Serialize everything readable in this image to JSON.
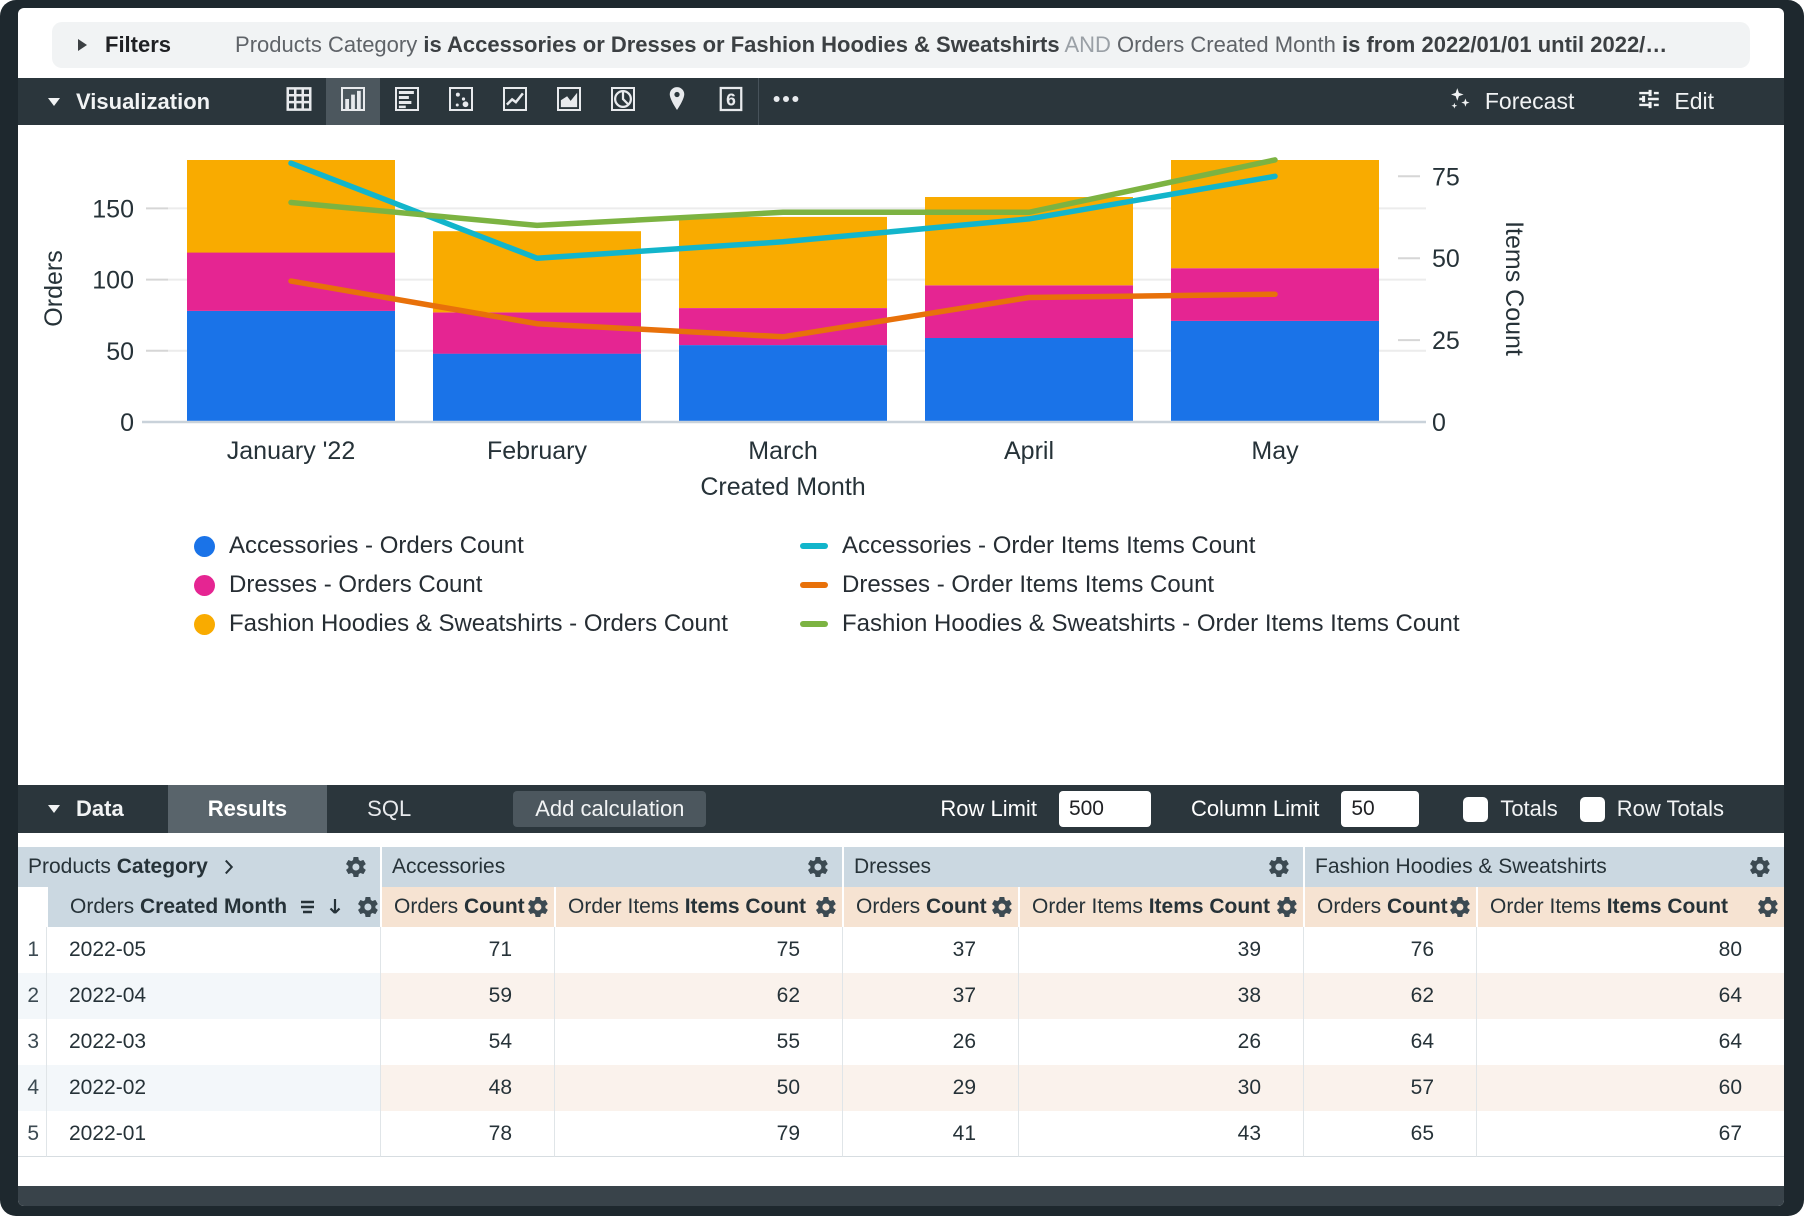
{
  "filters": {
    "label": "Filters",
    "summary": [
      {
        "text": "Products Category",
        "style": "normal"
      },
      {
        "text": " is Accessories or Dresses or Fashion Hoodies & Sweatshirts",
        "style": "bold"
      },
      {
        "text": " AND ",
        "style": "light"
      },
      {
        "text": "Orders Created Month",
        "style": "normal"
      },
      {
        "text": " is from 2022/01/01 until 2022/…",
        "style": "bold"
      }
    ]
  },
  "viz_toolbar": {
    "title": "Visualization",
    "icons": [
      {
        "name": "table-chart",
        "selected": false
      },
      {
        "name": "column-chart",
        "selected": true
      },
      {
        "name": "bar-chart",
        "selected": false
      },
      {
        "name": "scatter-plot",
        "selected": false
      },
      {
        "name": "line-chart",
        "selected": false
      },
      {
        "name": "area-chart",
        "selected": false
      },
      {
        "name": "pie-chart",
        "selected": false
      },
      {
        "name": "map",
        "selected": false
      },
      {
        "name": "single-value",
        "selected": false
      },
      {
        "name": "more-options",
        "selected": false
      }
    ],
    "forecast_label": "Forecast",
    "edit_label": "Edit"
  },
  "chart_data": {
    "type": "combo-stacked-bar-line",
    "x": [
      "January '22",
      "February",
      "March",
      "April",
      "May"
    ],
    "x_title": "Created Month",
    "y_left": {
      "title": "Orders",
      "ticks": [
        0,
        50,
        100,
        150
      ],
      "max": 187.5
    },
    "y_right": {
      "title": "Items Count",
      "ticks": [
        0,
        25,
        50,
        75
      ],
      "max": 81.5
    },
    "bar_series": [
      {
        "name": "Accessories - Orders Count",
        "color": "#1A73E8",
        "values": [
          78,
          48,
          54,
          59,
          71
        ]
      },
      {
        "name": "Dresses - Orders Count",
        "color": "#E52592",
        "values": [
          41,
          29,
          26,
          37,
          37
        ]
      },
      {
        "name": "Fashion Hoodies & Sweatshirts - Orders Count",
        "color": "#F9AB00",
        "values": [
          65,
          57,
          64,
          62,
          76
        ]
      }
    ],
    "line_series": [
      {
        "name": "Accessories - Order Items Items Count",
        "color": "#12B5CB",
        "values": [
          79,
          50,
          55,
          62,
          75
        ]
      },
      {
        "name": "Dresses - Order Items Items Count",
        "color": "#E8710A",
        "values": [
          43,
          30,
          26,
          38,
          39
        ]
      },
      {
        "name": "Fashion Hoodies & Sweatshirts - Order Items Items Count",
        "color": "#7CB342",
        "values": [
          67,
          60,
          64,
          64,
          80
        ]
      }
    ]
  },
  "data_toolbar": {
    "title": "Data",
    "tabs": [
      {
        "label": "Results",
        "active": true
      },
      {
        "label": "SQL",
        "active": false
      }
    ],
    "add_calculation_label": "Add calculation",
    "row_limit_label": "Row Limit",
    "row_limit_value": "500",
    "column_limit_label": "Column Limit",
    "column_limit_value": "50",
    "totals_label": "Totals",
    "row_totals_label": "Row Totals"
  },
  "table": {
    "header_groups": [
      {
        "pre": "Products ",
        "bold": "Category",
        "chevron": true
      },
      {
        "pre": "",
        "bold": "",
        "plain": "Accessories"
      },
      {
        "pre": "",
        "bold": "",
        "plain": "Dresses"
      },
      {
        "pre": "",
        "bold": "",
        "plain": "Fashion Hoodies & Sweatshirts"
      }
    ],
    "sub_headers": [
      {
        "pre": "Orders ",
        "bold": "Created Month",
        "type": "dimension"
      },
      {
        "pre": "Orders ",
        "bold": "Count",
        "type": "measure"
      },
      {
        "pre": "Order Items ",
        "bold": "Items Count",
        "type": "measure"
      },
      {
        "pre": "Orders ",
        "bold": "Count",
        "type": "measure"
      },
      {
        "pre": "Order Items ",
        "bold": "Items Count",
        "type": "measure"
      },
      {
        "pre": "Orders ",
        "bold": "Count",
        "type": "measure"
      },
      {
        "pre": "Order Items ",
        "bold": "Items Count",
        "type": "measure"
      }
    ],
    "rows": [
      {
        "index": "1",
        "dimension": "2022-05",
        "values": [
          71,
          75,
          37,
          39,
          76,
          80
        ]
      },
      {
        "index": "2",
        "dimension": "2022-04",
        "values": [
          59,
          62,
          37,
          38,
          62,
          64
        ]
      },
      {
        "index": "3",
        "dimension": "2022-03",
        "values": [
          54,
          55,
          26,
          26,
          64,
          64
        ]
      },
      {
        "index": "4",
        "dimension": "2022-02",
        "values": [
          48,
          50,
          29,
          30,
          57,
          60
        ]
      },
      {
        "index": "5",
        "dimension": "2022-01",
        "values": [
          78,
          79,
          41,
          43,
          65,
          67
        ]
      }
    ]
  }
}
